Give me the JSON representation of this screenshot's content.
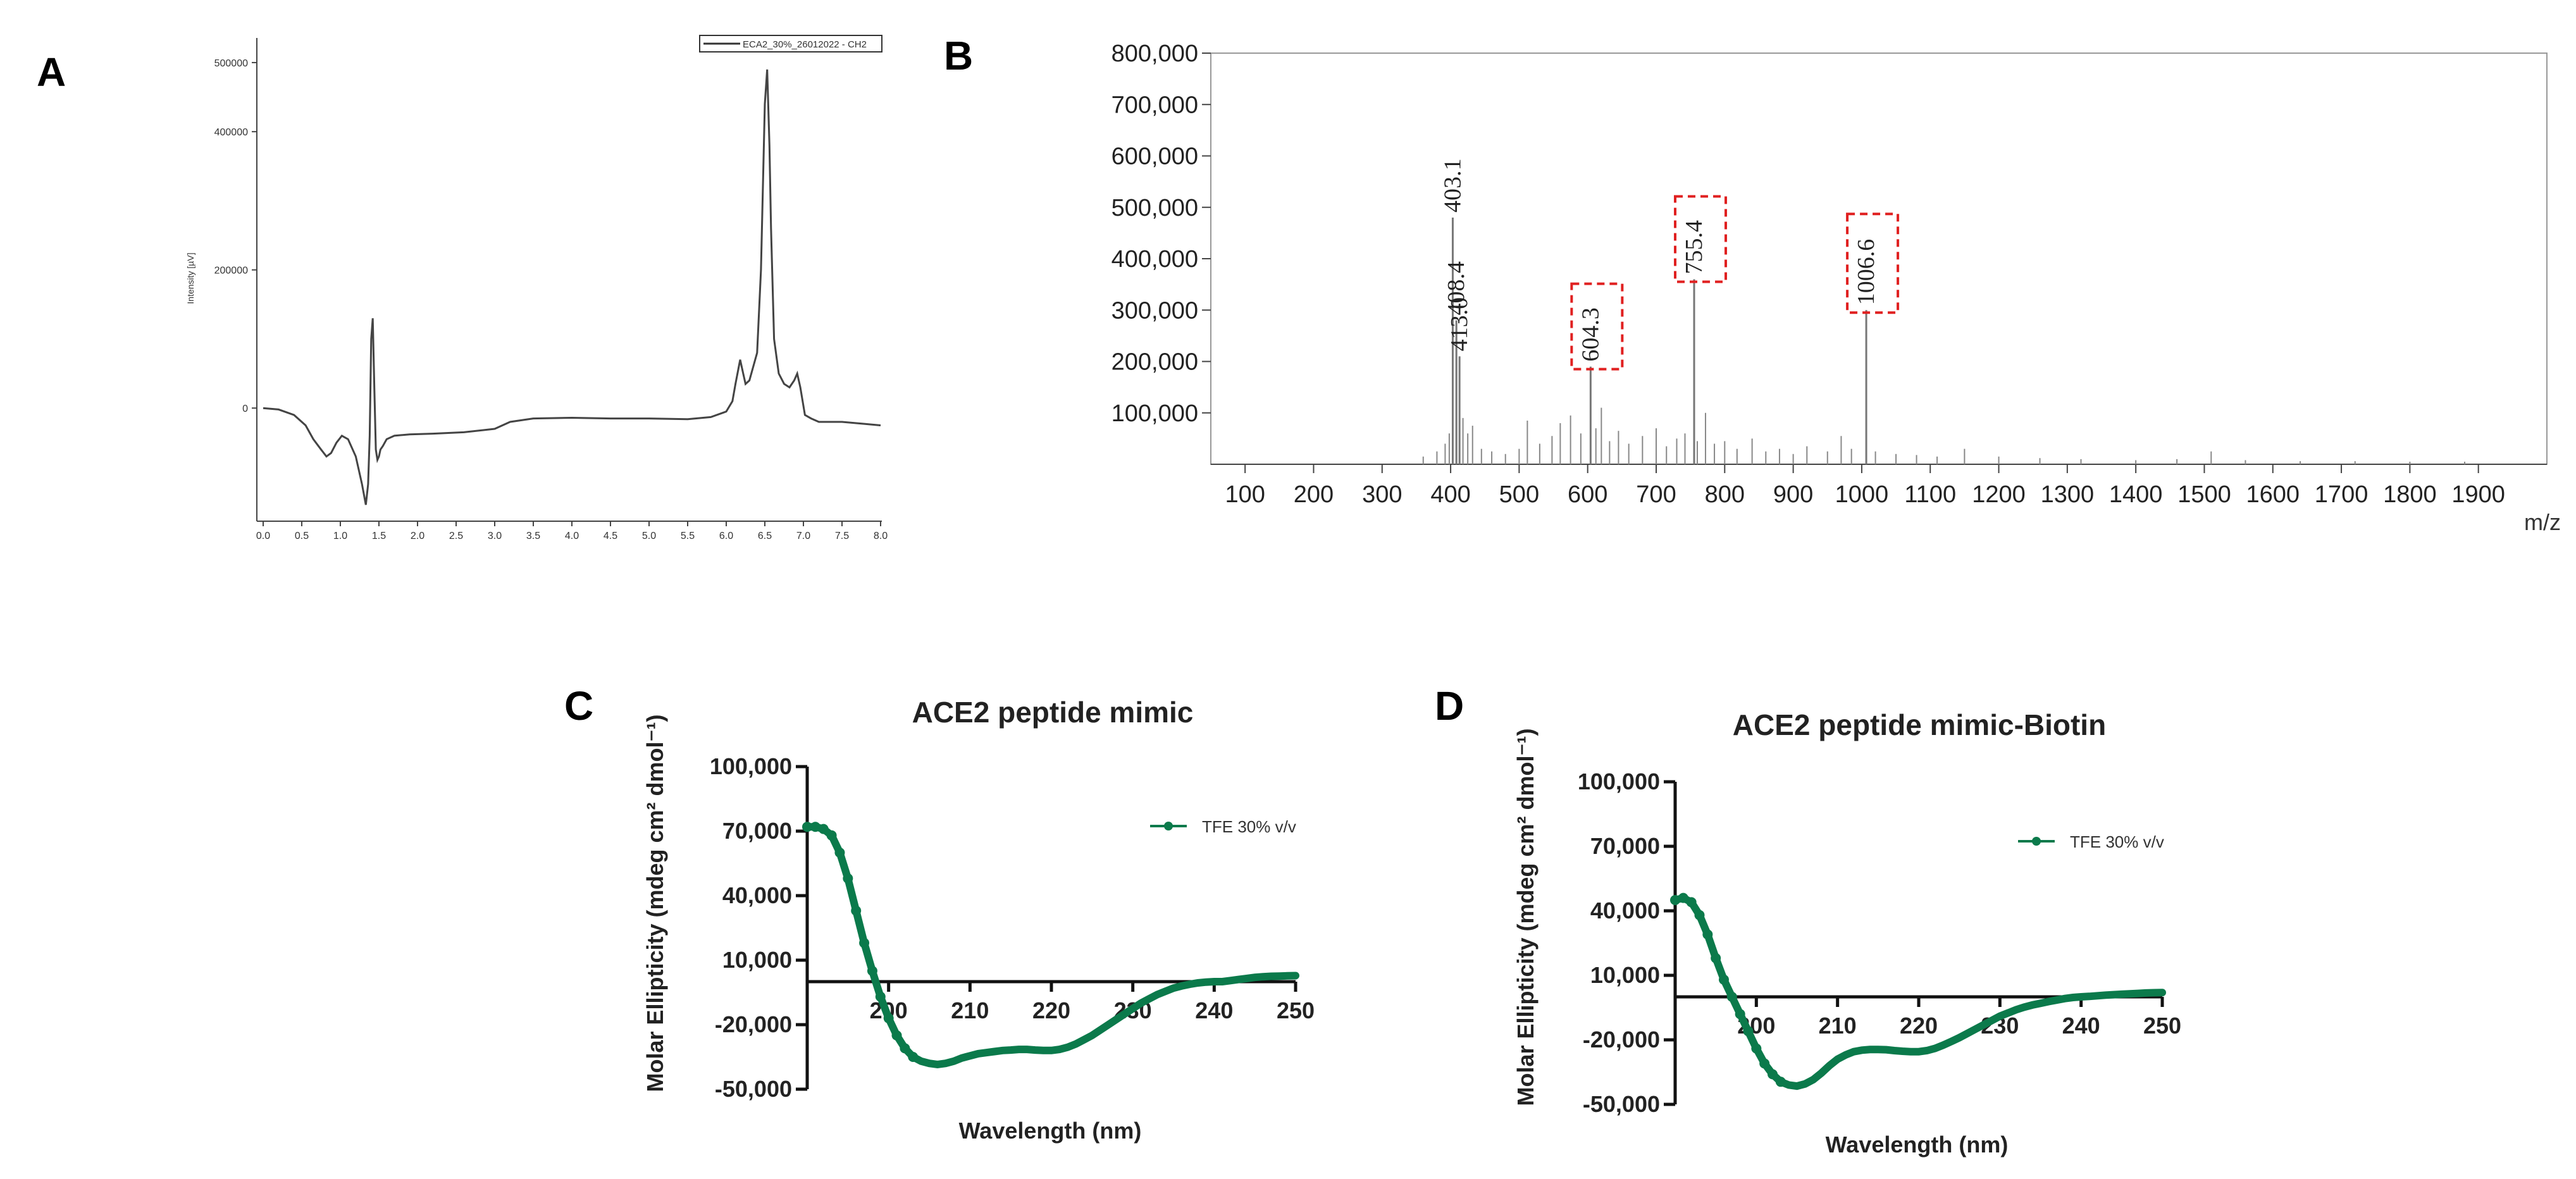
{
  "panels": {
    "a": "A",
    "b": "B",
    "c": "C",
    "d": "D"
  },
  "chart_data": [
    {
      "id": "A",
      "type": "line",
      "title": "",
      "xlabel": "",
      "ylabel": "Intensity [µV]",
      "legend": "ECA2_30%_26012022 - CH2",
      "legend_position": "top-right",
      "xlim": [
        0,
        8
      ],
      "ylim": [
        -160000,
        510000
      ],
      "xticks": [
        "0.0",
        "0.5",
        "1.0",
        "1.5",
        "2.0",
        "2.5",
        "3.0",
        "3.5",
        "4.0",
        "4.5",
        "5.0",
        "5.5",
        "6.0",
        "6.5",
        "7.0",
        "7.5",
        "8.0"
      ],
      "xtick_values": [
        0,
        0.5,
        1,
        1.5,
        2,
        2.5,
        3,
        3.5,
        4,
        4.5,
        5,
        5.5,
        6,
        6.5,
        7,
        7.5,
        8
      ],
      "yticks": [
        "500000",
        "400000",
        "200000",
        "0"
      ],
      "ytick_values": [
        500000,
        400000,
        200000,
        0
      ],
      "x": [
        0,
        0.2,
        0.4,
        0.55,
        0.65,
        0.75,
        0.82,
        0.88,
        0.95,
        1.02,
        1.1,
        1.2,
        1.28,
        1.33,
        1.36,
        1.38,
        1.4,
        1.42,
        1.44,
        1.46,
        1.48,
        1.5,
        1.52,
        1.55,
        1.6,
        1.7,
        1.9,
        2.2,
        2.6,
        3.0,
        3.2,
        3.5,
        4.0,
        4.5,
        5.0,
        5.5,
        5.8,
        6.0,
        6.08,
        6.12,
        6.18,
        6.22,
        6.25,
        6.3,
        6.4,
        6.45,
        6.5,
        6.53,
        6.56,
        6.58,
        6.62,
        6.68,
        6.75,
        6.82,
        6.88,
        6.92,
        6.96,
        7.02,
        7.1,
        7.2,
        7.5,
        7.8,
        8.0
      ],
      "y": [
        0,
        -2000,
        -10000,
        -25000,
        -45000,
        -60000,
        -70000,
        -65000,
        -50000,
        -40000,
        -45000,
        -70000,
        -110000,
        -140000,
        -110000,
        -40000,
        100000,
        130000,
        30000,
        -60000,
        -75000,
        -70000,
        -60000,
        -55000,
        -45000,
        -40000,
        -38000,
        -37000,
        -35000,
        -30000,
        -20000,
        -15000,
        -14000,
        -15000,
        -15000,
        -16000,
        -13000,
        -5000,
        10000,
        35000,
        70000,
        50000,
        35000,
        40000,
        80000,
        200000,
        440000,
        490000,
        380000,
        260000,
        100000,
        50000,
        35000,
        30000,
        40000,
        50000,
        30000,
        -10000,
        -15000,
        -20000,
        -20000,
        -23000,
        -25000
      ]
    },
    {
      "id": "B",
      "type": "bar",
      "title": "",
      "xlabel": "m/z",
      "ylabel": "",
      "xlim": [
        50,
        2000
      ],
      "ylim": [
        0,
        800000
      ],
      "xticks": [
        "100",
        "200",
        "300",
        "400",
        "500",
        "600",
        "700",
        "800",
        "900",
        "1000",
        "1100",
        "1200",
        "1300",
        "1400",
        "1500",
        "1600",
        "1700",
        "1800",
        "1900"
      ],
      "xtick_values": [
        100,
        200,
        300,
        400,
        500,
        600,
        700,
        800,
        900,
        1000,
        1100,
        1200,
        1300,
        1400,
        1500,
        1600,
        1700,
        1800,
        1900
      ],
      "yticks": [
        "100,000",
        "200,000",
        "300,000",
        "400,000",
        "500,000",
        "600,000",
        "700,000",
        "800,000"
      ],
      "ytick_values": [
        100000,
        200000,
        300000,
        400000,
        500000,
        600000,
        700000,
        800000
      ],
      "peaks": [
        {
          "mz": 403.1,
          "intensity": 480000,
          "label": "403.1",
          "highlight": false
        },
        {
          "mz": 408.4,
          "intensity": 280000,
          "label": "408.4",
          "highlight": false
        },
        {
          "mz": 413.0,
          "intensity": 210000,
          "label": "413.0",
          "highlight": false
        },
        {
          "mz": 604.3,
          "intensity": 190000,
          "label": "604.3",
          "highlight": true
        },
        {
          "mz": 755.4,
          "intensity": 360000,
          "label": "755.4",
          "highlight": true
        },
        {
          "mz": 1006.6,
          "intensity": 300000,
          "label": "1006.6",
          "highlight": true
        }
      ],
      "minor_peaks": [
        {
          "mz": 360,
          "intensity": 15000
        },
        {
          "mz": 380,
          "intensity": 25000
        },
        {
          "mz": 392,
          "intensity": 40000
        },
        {
          "mz": 398,
          "intensity": 60000
        },
        {
          "mz": 418,
          "intensity": 90000
        },
        {
          "mz": 425,
          "intensity": 60000
        },
        {
          "mz": 432,
          "intensity": 75000
        },
        {
          "mz": 445,
          "intensity": 30000
        },
        {
          "mz": 460,
          "intensity": 25000
        },
        {
          "mz": 480,
          "intensity": 20000
        },
        {
          "mz": 500,
          "intensity": 30000
        },
        {
          "mz": 512,
          "intensity": 85000
        },
        {
          "mz": 530,
          "intensity": 40000
        },
        {
          "mz": 548,
          "intensity": 55000
        },
        {
          "mz": 560,
          "intensity": 80000
        },
        {
          "mz": 575,
          "intensity": 95000
        },
        {
          "mz": 590,
          "intensity": 60000
        },
        {
          "mz": 612,
          "intensity": 70000
        },
        {
          "mz": 620,
          "intensity": 110000
        },
        {
          "mz": 632,
          "intensity": 45000
        },
        {
          "mz": 645,
          "intensity": 65000
        },
        {
          "mz": 660,
          "intensity": 40000
        },
        {
          "mz": 680,
          "intensity": 55000
        },
        {
          "mz": 700,
          "intensity": 70000
        },
        {
          "mz": 715,
          "intensity": 35000
        },
        {
          "mz": 730,
          "intensity": 50000
        },
        {
          "mz": 742,
          "intensity": 60000
        },
        {
          "mz": 760,
          "intensity": 45000
        },
        {
          "mz": 772,
          "intensity": 100000
        },
        {
          "mz": 785,
          "intensity": 40000
        },
        {
          "mz": 800,
          "intensity": 45000
        },
        {
          "mz": 818,
          "intensity": 30000
        },
        {
          "mz": 840,
          "intensity": 50000
        },
        {
          "mz": 860,
          "intensity": 25000
        },
        {
          "mz": 880,
          "intensity": 30000
        },
        {
          "mz": 900,
          "intensity": 20000
        },
        {
          "mz": 920,
          "intensity": 35000
        },
        {
          "mz": 950,
          "intensity": 25000
        },
        {
          "mz": 970,
          "intensity": 55000
        },
        {
          "mz": 985,
          "intensity": 30000
        },
        {
          "mz": 1020,
          "intensity": 25000
        },
        {
          "mz": 1050,
          "intensity": 20000
        },
        {
          "mz": 1080,
          "intensity": 18000
        },
        {
          "mz": 1110,
          "intensity": 15000
        },
        {
          "mz": 1150,
          "intensity": 30000
        },
        {
          "mz": 1200,
          "intensity": 15000
        },
        {
          "mz": 1260,
          "intensity": 12000
        },
        {
          "mz": 1320,
          "intensity": 10000
        },
        {
          "mz": 1400,
          "intensity": 8000
        },
        {
          "mz": 1460,
          "intensity": 10000
        },
        {
          "mz": 1510,
          "intensity": 25000
        },
        {
          "mz": 1560,
          "intensity": 8000
        },
        {
          "mz": 1640,
          "intensity": 6000
        },
        {
          "mz": 1720,
          "intensity": 6000
        },
        {
          "mz": 1800,
          "intensity": 5000
        },
        {
          "mz": 1880,
          "intensity": 5000
        }
      ]
    },
    {
      "id": "C",
      "type": "line",
      "title": "ACE2 peptide mimic",
      "xlabel": "Wavelength (nm)",
      "ylabel": "Molar Ellipticity  (mdeg cm² dmol⁻¹)",
      "legend": "TFE 30% v/v",
      "legend_position": "top-right",
      "xlim": [
        190,
        250
      ],
      "ylim": [
        -50000,
        100000
      ],
      "xticks": [
        "200",
        "210",
        "220",
        "230",
        "240",
        "250"
      ],
      "xtick_values": [
        200,
        210,
        220,
        230,
        240,
        250
      ],
      "yticks": [
        "100,000",
        "70,000",
        "40,000",
        "10,000",
        "-20,000",
        "-50,000"
      ],
      "ytick_values": [
        100000,
        70000,
        40000,
        10000,
        -20000,
        -50000
      ],
      "color": "#0b7a4b",
      "x": [
        190,
        191,
        192,
        193,
        194,
        195,
        196,
        197,
        198,
        199,
        200,
        201,
        202,
        203,
        204,
        205,
        206,
        207,
        208,
        209,
        210,
        211,
        212,
        213,
        214,
        215,
        216,
        217,
        218,
        219,
        220,
        221,
        222,
        223,
        224,
        225,
        226,
        227,
        228,
        229,
        230,
        231,
        232,
        233,
        234,
        235,
        236,
        237,
        238,
        239,
        240,
        241,
        242,
        243,
        244,
        245,
        246,
        247,
        248,
        249,
        250
      ],
      "y": [
        72000,
        72000,
        71000,
        68000,
        60000,
        48000,
        33000,
        18000,
        5000,
        -7000,
        -17000,
        -25000,
        -31000,
        -35000,
        -37000,
        -38000,
        -38500,
        -38000,
        -37000,
        -35500,
        -34500,
        -33500,
        -33000,
        -32500,
        -32000,
        -31800,
        -31500,
        -31500,
        -31800,
        -32000,
        -32000,
        -31500,
        -30500,
        -29000,
        -27000,
        -25000,
        -22500,
        -20000,
        -17500,
        -15000,
        -12500,
        -10000,
        -8000,
        -6000,
        -4500,
        -3000,
        -2000,
        -1200,
        -600,
        -200,
        0,
        0,
        500,
        1000,
        1500,
        2000,
        2300,
        2500,
        2600,
        2700,
        2800
      ]
    },
    {
      "id": "D",
      "type": "line",
      "title": "ACE2 peptide mimic-Biotin",
      "xlabel": "Wavelength (nm)",
      "ylabel": "Molar Ellipticity  (mdeg cm² dmol⁻¹)",
      "legend": "TFE 30% v/v",
      "legend_position": "top-right",
      "xlim": [
        190,
        250
      ],
      "ylim": [
        -50000,
        100000
      ],
      "xticks": [
        "200",
        "210",
        "220",
        "230",
        "240",
        "250"
      ],
      "xtick_values": [
        200,
        210,
        220,
        230,
        240,
        250
      ],
      "yticks": [
        "100,000",
        "70,000",
        "40,000",
        "10,000",
        "-20,000",
        "-50,000"
      ],
      "ytick_values": [
        100000,
        70000,
        40000,
        10000,
        -20000,
        -50000
      ],
      "color": "#0b7a4b",
      "x": [
        190,
        191,
        192,
        193,
        194,
        195,
        196,
        197,
        198,
        199,
        200,
        201,
        202,
        203,
        204,
        205,
        206,
        207,
        208,
        209,
        210,
        211,
        212,
        213,
        214,
        215,
        216,
        217,
        218,
        219,
        220,
        221,
        222,
        223,
        224,
        225,
        226,
        227,
        228,
        229,
        230,
        231,
        232,
        233,
        234,
        235,
        236,
        237,
        238,
        239,
        240,
        241,
        242,
        243,
        244,
        245,
        246,
        247,
        248,
        249,
        250
      ],
      "y": [
        45000,
        46000,
        44000,
        38000,
        29000,
        18000,
        8000,
        0,
        -8000,
        -16000,
        -24000,
        -31000,
        -36000,
        -39500,
        -41000,
        -41500,
        -40500,
        -38500,
        -35500,
        -32000,
        -29000,
        -27000,
        -25500,
        -24800,
        -24500,
        -24500,
        -24600,
        -25000,
        -25300,
        -25500,
        -25500,
        -25000,
        -24000,
        -22500,
        -20800,
        -19000,
        -17000,
        -15000,
        -13000,
        -11000,
        -9000,
        -7500,
        -6000,
        -4800,
        -3800,
        -3000,
        -2200,
        -1500,
        -800,
        -300,
        0,
        200,
        500,
        800,
        1000,
        1200,
        1400,
        1600,
        1800,
        1900,
        2000
      ]
    }
  ]
}
